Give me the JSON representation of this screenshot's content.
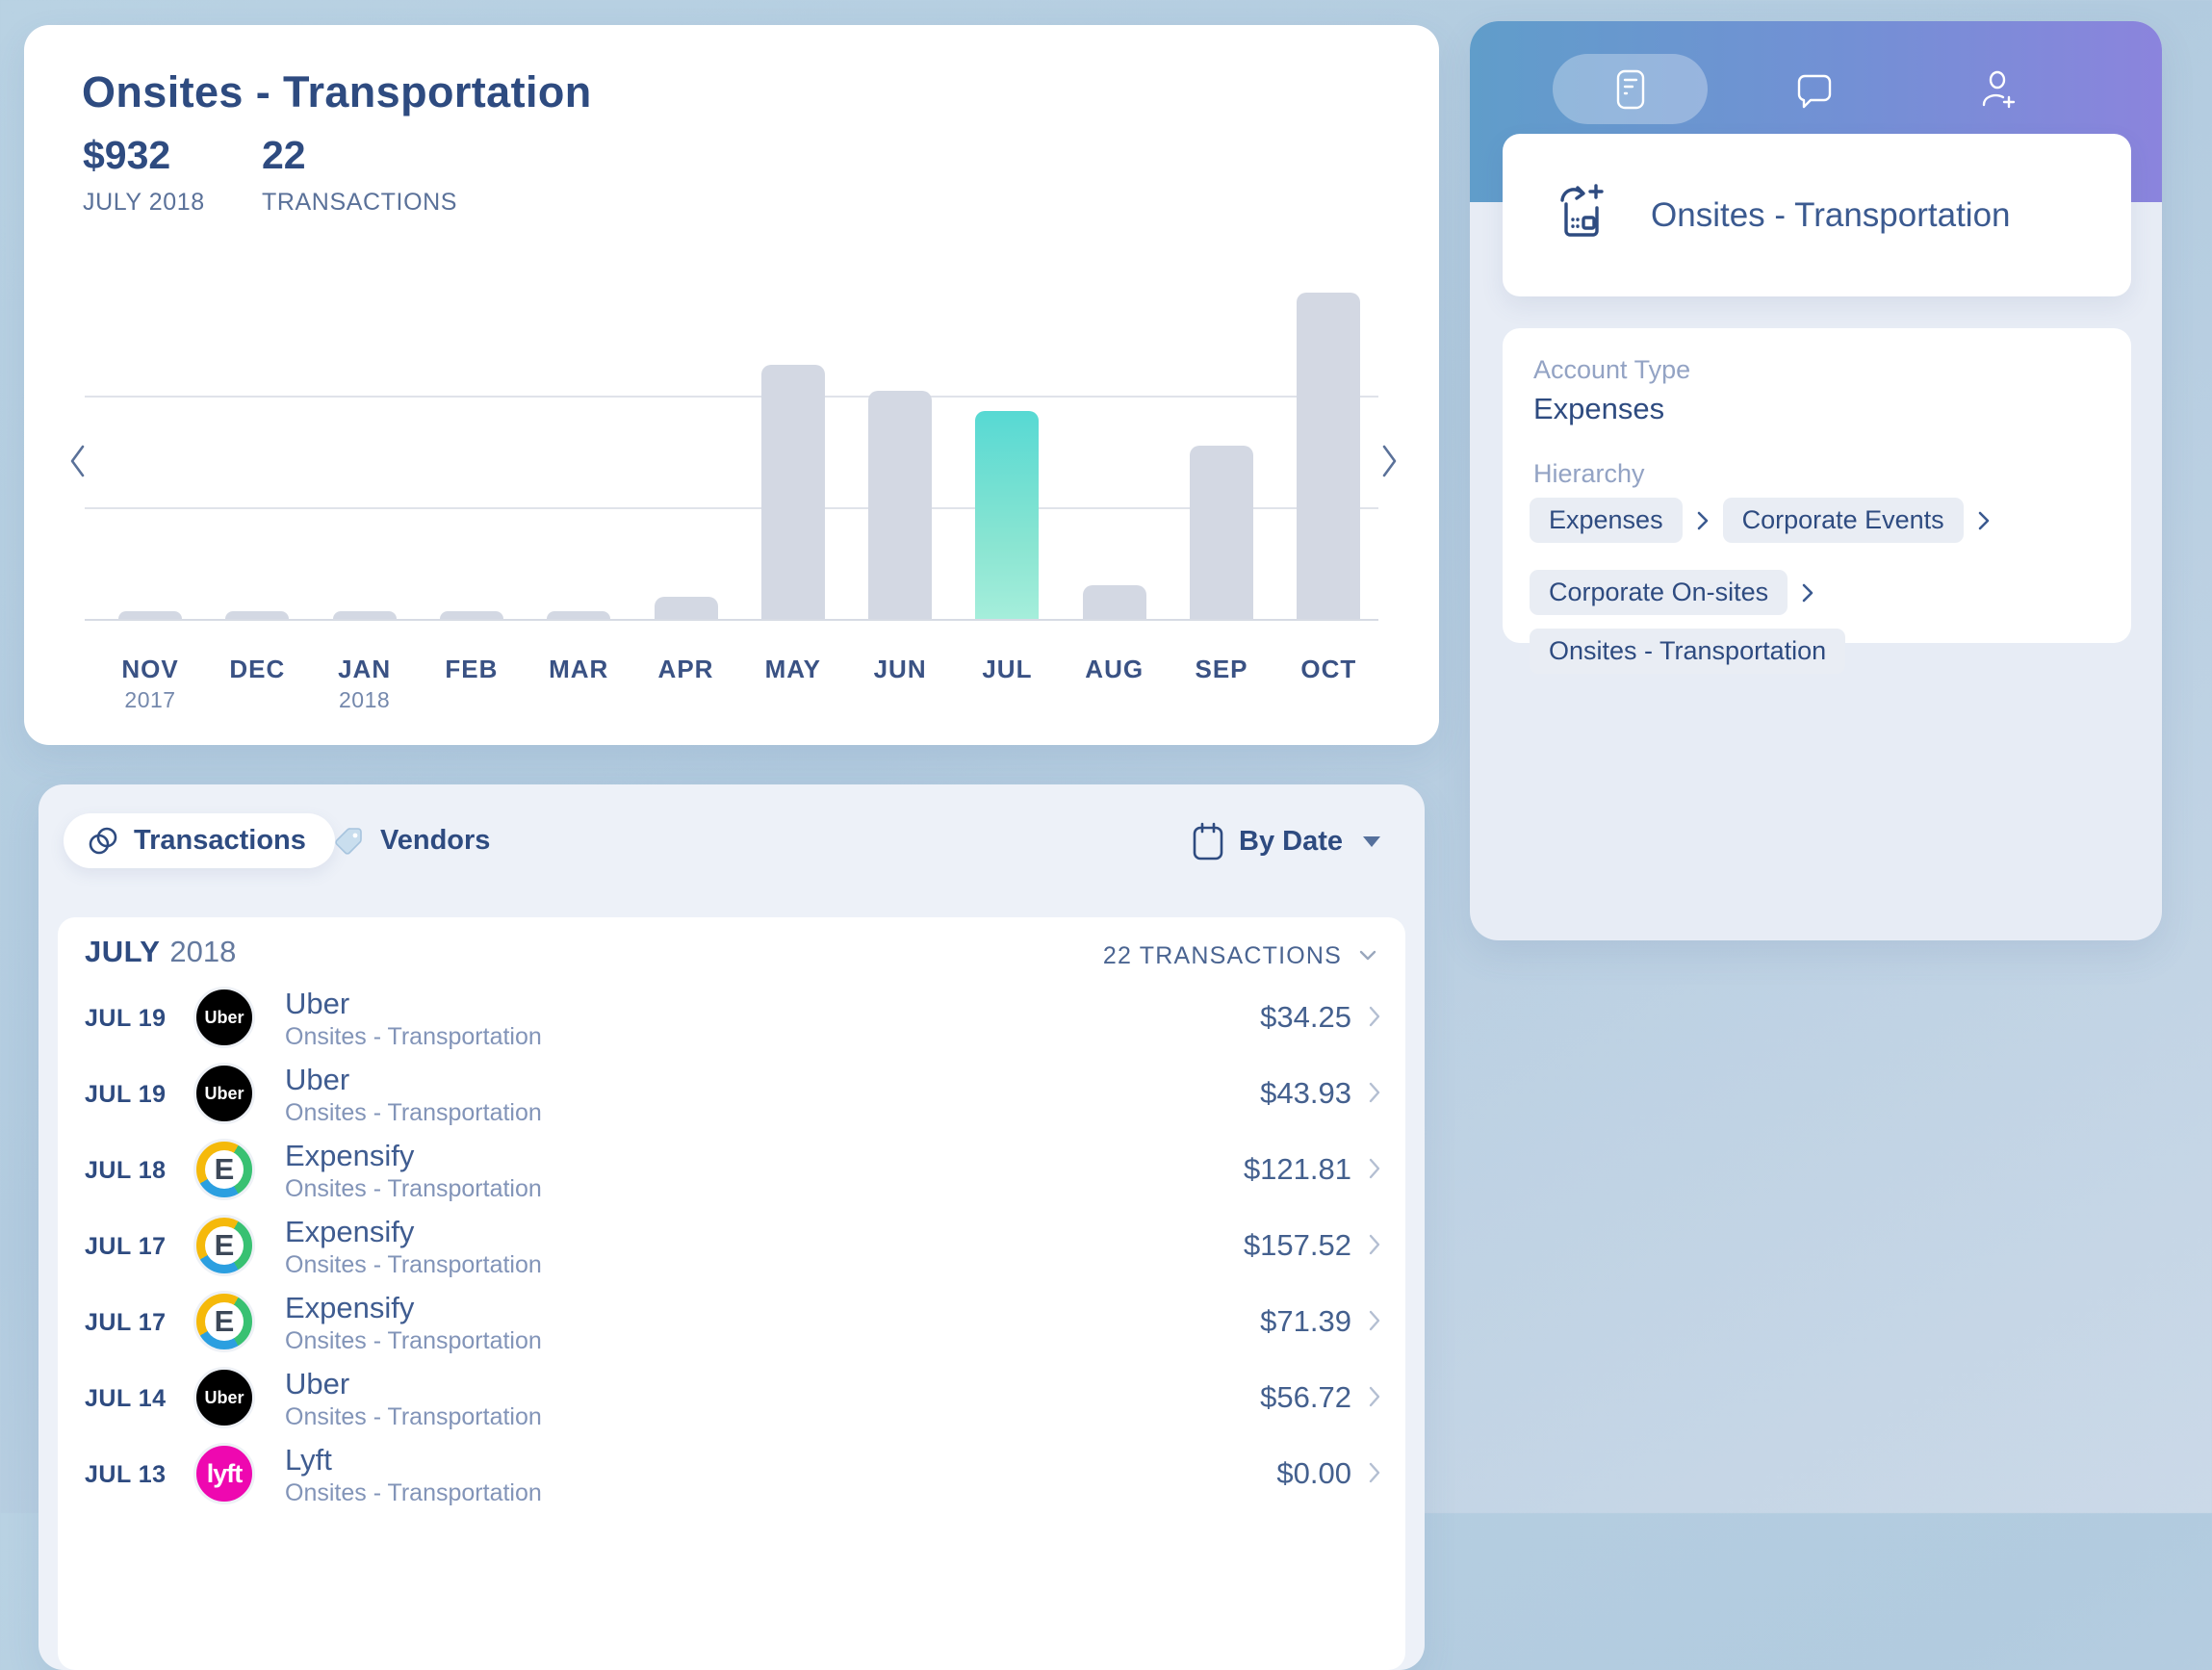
{
  "chart_card": {
    "title": "Onsites - Transportation",
    "amount": "$932",
    "amount_label": "JULY 2018",
    "count": "22",
    "count_label": "TRANSACTIONS",
    "chart_data": {
      "type": "bar",
      "categories": [
        "NOV",
        "DEC",
        "JAN",
        "FEB",
        "MAR",
        "APR",
        "MAY",
        "JUN",
        "JUL",
        "AUG",
        "SEP",
        "OCT"
      ],
      "year_labels": [
        "2017",
        "",
        "2018",
        "",
        "",
        "",
        "",
        "",
        "",
        "",
        "",
        ""
      ],
      "values": [
        35,
        35,
        35,
        35,
        35,
        100,
        1140,
        1020,
        932,
        150,
        775,
        1460
      ],
      "selected_index": 8,
      "selected_value_exact": 932,
      "ylim": [
        0,
        1550
      ],
      "gridline_values_estimated": [
        500,
        1000
      ],
      "grid": "horizontal lines only, no y tick labels",
      "legend": "none",
      "bar_color": "#d3d8e3",
      "selected_bar_gradient": [
        "#57d9d3",
        "#a5eedb"
      ]
    }
  },
  "transactions_card": {
    "tabs": [
      {
        "label": "Transactions",
        "icon": "coins-icon",
        "active": true
      },
      {
        "label": "Vendors",
        "icon": "tag-icon",
        "active": false
      }
    ],
    "sort_label": "By Date",
    "group": {
      "month": "JULY",
      "year": "2018",
      "count_label": "22 TRANSACTIONS"
    },
    "rows": [
      {
        "date": "JUL 19",
        "vendor": "Uber",
        "category": "Onsites - Transportation",
        "amount": "$34.25",
        "logo": "uber",
        "logo_text": "Uber"
      },
      {
        "date": "JUL 19",
        "vendor": "Uber",
        "category": "Onsites - Transportation",
        "amount": "$43.93",
        "logo": "uber",
        "logo_text": "Uber"
      },
      {
        "date": "JUL 18",
        "vendor": "Expensify",
        "category": "Onsites - Transportation",
        "amount": "$121.81",
        "logo": "expensify",
        "logo_text": "E"
      },
      {
        "date": "JUL 17",
        "vendor": "Expensify",
        "category": "Onsites - Transportation",
        "amount": "$157.52",
        "logo": "expensify",
        "logo_text": "E"
      },
      {
        "date": "JUL 17",
        "vendor": "Expensify",
        "category": "Onsites - Transportation",
        "amount": "$71.39",
        "logo": "expensify",
        "logo_text": "E"
      },
      {
        "date": "JUL 14",
        "vendor": "Uber",
        "category": "Onsites - Transportation",
        "amount": "$56.72",
        "logo": "uber",
        "logo_text": "Uber"
      },
      {
        "date": "JUL 13",
        "vendor": "Lyft",
        "category": "Onsites - Transportation",
        "amount": "$0.00",
        "logo": "lyft",
        "logo_text": "lyft"
      }
    ]
  },
  "detail_panel": {
    "tabs": [
      "receipt-icon",
      "comment-icon",
      "person-add-icon"
    ],
    "title": "Onsites - Transportation",
    "account_type_label": "Account Type",
    "account_type": "Expenses",
    "hierarchy_label": "Hierarchy",
    "hierarchy": [
      "Expenses",
      "Corporate Events",
      "Corporate On-sites",
      "Onsites - Transportation"
    ]
  },
  "colors": {
    "navy_text": "#2e4b80",
    "muted_text": "#8294b8",
    "bar_gray": "#d3d8e3",
    "selected_teal": "#57d9d3",
    "header_gradient_left": "#609dca",
    "header_gradient_right": "#8b84dd",
    "uber_black": "#000000",
    "lyft_pink": "#ee08b0",
    "expensify_yellow": "#f5b90a",
    "expensify_green": "#38c172",
    "expensify_blue": "#2b9fe0"
  }
}
